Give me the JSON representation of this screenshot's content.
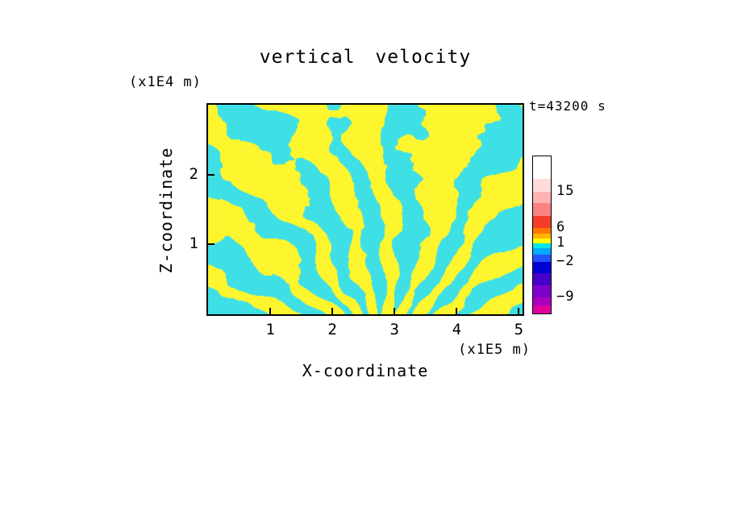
{
  "chart_data": {
    "type": "heatmap",
    "subtype": "filled-contour",
    "title": "vertical velocity",
    "xlabel": "X-coordinate",
    "ylabel": "Z-coordinate",
    "x_unit": "(x1E5 m)",
    "y_unit": "(x1E4 m)",
    "annotation": "t=43200 s",
    "x_ticks": [
      1,
      2,
      3,
      4,
      5
    ],
    "y_ticks": [
      1,
      2
    ],
    "xlim": [
      0,
      5.06
    ],
    "ylim": [
      0,
      3.0
    ],
    "grid": false,
    "legend_position": "right-colorbar",
    "field": {
      "description": "Turbulent two-tone vertical-velocity field: yellow patches = weak positive values (0 to 1), cyan patches = weak negative values (-1 to 0); filamentary structures fan out from the bottom centre of the domain, with broader blobs near the top.",
      "positive_color": "#fdf52e",
      "negative_color": "#3fdfe6"
    },
    "colorbar": {
      "orientation": "vertical",
      "labels": [
        {
          "value": "15",
          "offset": 44
        },
        {
          "value": "6",
          "offset": 89
        },
        {
          "value": "1",
          "offset": 108
        },
        {
          "value": "−2",
          "offset": 131
        },
        {
          "value": "−9",
          "offset": 175
        }
      ],
      "segments": [
        {
          "color": "#ffffff",
          "h": 28
        },
        {
          "color": "#ffdcdc",
          "h": 16
        },
        {
          "color": "#ffb4b4",
          "h": 14
        },
        {
          "color": "#fa8282",
          "h": 16
        },
        {
          "color": "#f53c28",
          "h": 15
        },
        {
          "color": "#ff7800",
          "h": 7
        },
        {
          "color": "#ffb400",
          "h": 6
        },
        {
          "color": "#ffff00",
          "h": 6
        },
        {
          "color": "#00e6e6",
          "h": 6
        },
        {
          "color": "#00aaff",
          "h": 8
        },
        {
          "color": "#2353ff",
          "h": 9
        },
        {
          "color": "#0000d2",
          "h": 14
        },
        {
          "color": "#4600c8",
          "h": 15
        },
        {
          "color": "#7d00c8",
          "h": 15
        },
        {
          "color": "#aa00be",
          "h": 10
        },
        {
          "color": "#e100a0",
          "h": 10
        }
      ]
    }
  }
}
